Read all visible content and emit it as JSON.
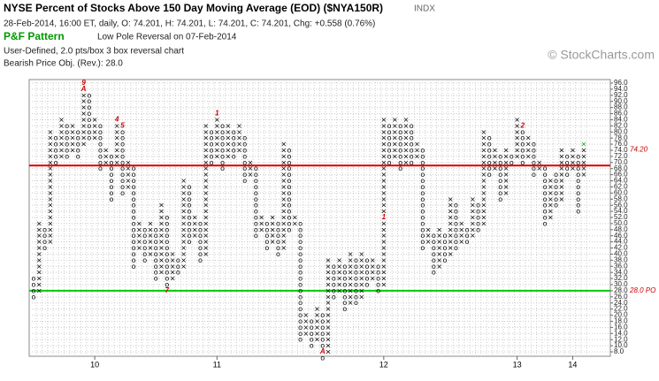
{
  "chart_data": {
    "type": "point-and-figure",
    "title": "NYSE Percent of Stocks Above 150 Day Moving Average (EOD) ($NYA150R)",
    "exchange": "INDX",
    "quote": "28-Feb-2014, 16:00 ET, daily, O: 74.201, H: 74.201, L: 74.201, C: 74.201, Chg: +0.558 (0.76%)",
    "pattern_label": "P&F Pattern",
    "pattern": "Low Pole Reversal on 07-Feb-2014",
    "settings": "User-Defined, 2.0 pts/box 3 box reversal chart",
    "objective": "Bearish Price Obj. (Rev.): 28.0",
    "watermark": "© StockCharts.com",
    "box_size": 2,
    "ylim": [
      8,
      96
    ],
    "yticks": [
      {
        "value": 96,
        "label": "96.0"
      },
      {
        "value": 94,
        "label": "94.0"
      },
      {
        "value": 92,
        "label": "92.0"
      },
      {
        "value": 90,
        "label": "90.0"
      },
      {
        "value": 88,
        "label": "88.0"
      },
      {
        "value": 86,
        "label": "86.0"
      },
      {
        "value": 84,
        "label": "84.0"
      },
      {
        "value": 82,
        "label": "82.0"
      },
      {
        "value": 80,
        "label": "80.0"
      },
      {
        "value": 78,
        "label": "78.0"
      },
      {
        "value": 76,
        "label": "76.0"
      },
      {
        "value": 74,
        "label": "74.0"
      },
      {
        "value": 72,
        "label": "72.0"
      },
      {
        "value": 70,
        "label": "70.0"
      },
      {
        "value": 68,
        "label": "68.0"
      },
      {
        "value": 66,
        "label": "66.0"
      },
      {
        "value": 64,
        "label": "64.0"
      },
      {
        "value": 62,
        "label": "62.0"
      },
      {
        "value": 60,
        "label": "60.0"
      },
      {
        "value": 58,
        "label": "58.0"
      },
      {
        "value": 56,
        "label": "56.0"
      },
      {
        "value": 54,
        "label": "54.0"
      },
      {
        "value": 52,
        "label": "52.0"
      },
      {
        "value": 50,
        "label": "50.0"
      },
      {
        "value": 48,
        "label": "48.0"
      },
      {
        "value": 46,
        "label": "46.0"
      },
      {
        "value": 44,
        "label": "44.0"
      },
      {
        "value": 42,
        "label": "42.0"
      },
      {
        "value": 40,
        "label": "40.0"
      },
      {
        "value": 38,
        "label": "38.0"
      },
      {
        "value": 36,
        "label": "36.0"
      },
      {
        "value": 34,
        "label": "34.0"
      },
      {
        "value": 32,
        "label": "32.0"
      },
      {
        "value": 30,
        "label": "30.0"
      },
      {
        "value": 28,
        "label": "28.0"
      },
      {
        "value": 26,
        "label": "26.0"
      },
      {
        "value": 24,
        "label": "24.0"
      },
      {
        "value": 22,
        "label": "22.0"
      },
      {
        "value": 20,
        "label": "20.0"
      },
      {
        "value": 18,
        "label": "18.0"
      },
      {
        "value": 16,
        "label": "16.0"
      },
      {
        "value": 14,
        "label": "14.0"
      },
      {
        "value": 12,
        "label": "12.0"
      },
      {
        "value": 10,
        "label": "10.0"
      },
      {
        "value": 8,
        "label": "8.0"
      }
    ],
    "grid": true,
    "colors": {
      "X": "#000000",
      "O": "#000000",
      "marker": "#cc0000",
      "last": "#00aa00"
    },
    "columns": [
      {
        "t": "O",
        "lo": 26,
        "hi": 32
      },
      {
        "t": "X",
        "lo": 28,
        "hi": 50
      },
      {
        "t": "O",
        "lo": 42,
        "hi": 48
      },
      {
        "t": "X",
        "lo": 44,
        "hi": 80
      },
      {
        "t": "O",
        "lo": 70,
        "hi": 78
      },
      {
        "t": "X",
        "lo": 72,
        "hi": 84
      },
      {
        "t": "O",
        "lo": 72,
        "hi": 82
      },
      {
        "t": "X",
        "lo": 74,
        "hi": 82
      },
      {
        "t": "O",
        "lo": 72,
        "hi": 80
      },
      {
        "t": "X",
        "lo": 76,
        "hi": 96
      },
      {
        "t": "O",
        "lo": 78,
        "hi": 92
      },
      {
        "t": "X",
        "lo": 78,
        "hi": 84
      },
      {
        "t": "O",
        "lo": 68,
        "hi": 82
      },
      {
        "t": "X",
        "lo": 70,
        "hi": 74
      },
      {
        "t": "O",
        "lo": 58,
        "hi": 72
      },
      {
        "t": "X",
        "lo": 70,
        "hi": 84
      },
      {
        "t": "O",
        "lo": 60,
        "hi": 82
      },
      {
        "t": "X",
        "lo": 62,
        "hi": 70
      },
      {
        "t": "O",
        "lo": 36,
        "hi": 68
      },
      {
        "t": "X",
        "lo": 42,
        "hi": 50
      },
      {
        "t": "O",
        "lo": 38,
        "hi": 48
      },
      {
        "t": "X",
        "lo": 40,
        "hi": 50
      },
      {
        "t": "O",
        "lo": 32,
        "hi": 48
      },
      {
        "t": "X",
        "lo": 34,
        "hi": 56
      },
      {
        "t": "O",
        "lo": 28,
        "hi": 52
      },
      {
        "t": "X",
        "lo": 32,
        "hi": 40
      },
      {
        "t": "O",
        "lo": 34,
        "hi": 38
      },
      {
        "t": "X",
        "lo": 36,
        "hi": 64
      },
      {
        "t": "O",
        "lo": 44,
        "hi": 62
      },
      {
        "t": "X",
        "lo": 46,
        "hi": 52
      },
      {
        "t": "O",
        "lo": 38,
        "hi": 50
      },
      {
        "t": "X",
        "lo": 40,
        "hi": 82
      },
      {
        "t": "O",
        "lo": 70,
        "hi": 80
      },
      {
        "t": "X",
        "lo": 72,
        "hi": 86
      },
      {
        "t": "O",
        "lo": 68,
        "hi": 82
      },
      {
        "t": "X",
        "lo": 72,
        "hi": 82
      },
      {
        "t": "O",
        "lo": 72,
        "hi": 80
      },
      {
        "t": "X",
        "lo": 74,
        "hi": 82
      },
      {
        "t": "O",
        "lo": 64,
        "hi": 78
      },
      {
        "t": "X",
        "lo": 66,
        "hi": 70
      },
      {
        "t": "O",
        "lo": 46,
        "hi": 68
      },
      {
        "t": "X",
        "lo": 48,
        "hi": 52
      },
      {
        "t": "O",
        "lo": 42,
        "hi": 50
      },
      {
        "t": "X",
        "lo": 44,
        "hi": 52
      },
      {
        "t": "O",
        "lo": 40,
        "hi": 50
      },
      {
        "t": "X",
        "lo": 42,
        "hi": 76
      },
      {
        "t": "O",
        "lo": 48,
        "hi": 74
      },
      {
        "t": "X",
        "lo": 50,
        "hi": 52
      },
      {
        "t": "O",
        "lo": 12,
        "hi": 50
      },
      {
        "t": "X",
        "lo": 14,
        "hi": 20
      },
      {
        "t": "O",
        "lo": 10,
        "hi": 18
      },
      {
        "t": "X",
        "lo": 12,
        "hi": 22
      },
      {
        "t": "O",
        "lo": 6,
        "hi": 20
      },
      {
        "t": "X",
        "lo": 8,
        "hi": 38
      },
      {
        "t": "O",
        "lo": 26,
        "hi": 36
      },
      {
        "t": "X",
        "lo": 28,
        "hi": 38
      },
      {
        "t": "O",
        "lo": 22,
        "hi": 36
      },
      {
        "t": "X",
        "lo": 24,
        "hi": 40
      },
      {
        "t": "O",
        "lo": 24,
        "hi": 38
      },
      {
        "t": "X",
        "lo": 26,
        "hi": 40
      },
      {
        "t": "O",
        "lo": 30,
        "hi": 38
      },
      {
        "t": "X",
        "lo": 32,
        "hi": 38
      },
      {
        "t": "O",
        "lo": 28,
        "hi": 36
      },
      {
        "t": "X",
        "lo": 30,
        "hi": 84
      },
      {
        "t": "O",
        "lo": 70,
        "hi": 82
      },
      {
        "t": "X",
        "lo": 72,
        "hi": 84
      },
      {
        "t": "O",
        "lo": 68,
        "hi": 82
      },
      {
        "t": "X",
        "lo": 70,
        "hi": 84
      },
      {
        "t": "O",
        "lo": 70,
        "hi": 82
      },
      {
        "t": "X",
        "lo": 72,
        "hi": 76
      },
      {
        "t": "O",
        "lo": 42,
        "hi": 74
      },
      {
        "t": "X",
        "lo": 44,
        "hi": 48
      },
      {
        "t": "O",
        "lo": 34,
        "hi": 46
      },
      {
        "t": "X",
        "lo": 36,
        "hi": 48
      },
      {
        "t": "O",
        "lo": 38,
        "hi": 46
      },
      {
        "t": "X",
        "lo": 40,
        "hi": 58
      },
      {
        "t": "O",
        "lo": 42,
        "hi": 56
      },
      {
        "t": "X",
        "lo": 44,
        "hi": 50
      },
      {
        "t": "O",
        "lo": 44,
        "hi": 48
      },
      {
        "t": "X",
        "lo": 46,
        "hi": 58
      },
      {
        "t": "O",
        "lo": 48,
        "hi": 56
      },
      {
        "t": "X",
        "lo": 50,
        "hi": 80
      },
      {
        "t": "O",
        "lo": 66,
        "hi": 78
      },
      {
        "t": "X",
        "lo": 68,
        "hi": 74
      },
      {
        "t": "O",
        "lo": 58,
        "hi": 72
      },
      {
        "t": "X",
        "lo": 60,
        "hi": 74
      },
      {
        "t": "O",
        "lo": 70,
        "hi": 72
      },
      {
        "t": "X",
        "lo": 72,
        "hi": 84
      },
      {
        "t": "O",
        "lo": 70,
        "hi": 82
      },
      {
        "t": "X",
        "lo": 72,
        "hi": 78
      },
      {
        "t": "O",
        "lo": 66,
        "hi": 76
      },
      {
        "t": "X",
        "lo": 68,
        "hi": 70
      },
      {
        "t": "O",
        "lo": 50,
        "hi": 68
      },
      {
        "t": "X",
        "lo": 52,
        "hi": 64
      },
      {
        "t": "O",
        "lo": 56,
        "hi": 66
      },
      {
        "t": "X",
        "lo": 58,
        "hi": 74
      },
      {
        "t": "O",
        "lo": 66,
        "hi": 72
      },
      {
        "t": "X",
        "lo": 68,
        "hi": 74
      },
      {
        "t": "O",
        "lo": 54,
        "hi": 72
      },
      {
        "t": "X",
        "lo": 66,
        "hi": 76
      }
    ],
    "markers": [
      {
        "col": 9,
        "value": 96,
        "label": "9"
      },
      {
        "col": 9,
        "value": 94,
        "label": "A"
      },
      {
        "col": 15,
        "value": 84,
        "label": "4"
      },
      {
        "col": 16,
        "value": 82,
        "label": "5"
      },
      {
        "col": 24,
        "value": 28,
        "label": "7"
      },
      {
        "col": 33,
        "value": 86,
        "label": "1"
      },
      {
        "col": 52,
        "value": 8,
        "label": "A"
      },
      {
        "col": 63,
        "value": 52,
        "label": "1"
      },
      {
        "col": 88,
        "value": 82,
        "label": "2"
      }
    ],
    "x_labels": [
      {
        "col": 11,
        "label": "10"
      },
      {
        "col": 33,
        "label": "11"
      },
      {
        "col": 63,
        "label": "12"
      },
      {
        "col": 87,
        "label": "13"
      },
      {
        "col": 97,
        "label": "14"
      }
    ],
    "lines": [
      {
        "value": 69,
        "color": "#dd0000"
      },
      {
        "value": 28,
        "color": "#00cc00"
      }
    ],
    "price_labels": [
      {
        "value": 74.2,
        "label": "74.20",
        "color": "#cc0000"
      },
      {
        "value": 28,
        "label": "28.0 PO",
        "color": "#cc0000"
      }
    ]
  }
}
